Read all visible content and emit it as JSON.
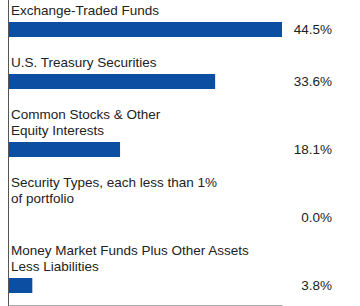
{
  "chart_data": {
    "type": "bar",
    "orientation": "horizontal",
    "categories": [
      "Exchange-Traded Funds",
      "U.S. Treasury Securities",
      "Common Stocks & Other Equity Interests",
      "Security Types, each less than 1% of portfolio",
      "Money Market Funds Plus Other Assets Less Liabilities"
    ],
    "values": [
      44.5,
      33.6,
      18.1,
      0.0,
      3.8
    ],
    "value_labels": [
      "44.5%",
      "33.6%",
      "18.1%",
      "0.0%",
      "3.8%"
    ],
    "color": "#0b4ea2",
    "xlim": [
      0,
      44.5
    ],
    "xticks": [],
    "tick_labels": false,
    "data_labels": true,
    "grid": false
  }
}
